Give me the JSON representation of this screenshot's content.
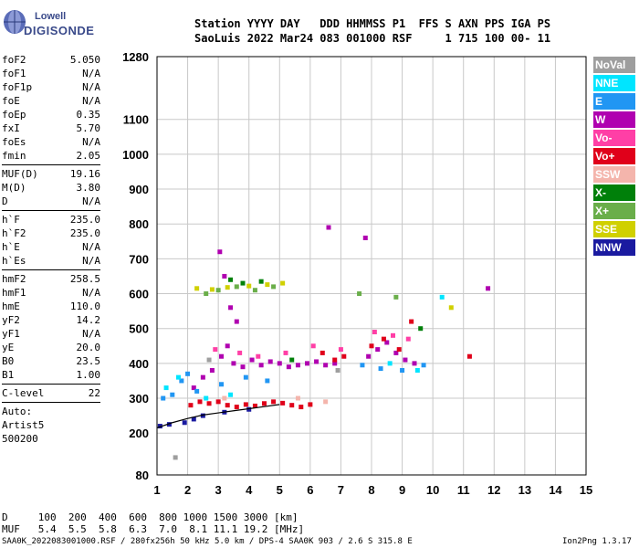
{
  "logo": {
    "line1": "Lowell",
    "line2": "DIGISONDE"
  },
  "header": {
    "line1": "Station YYYY DAY   DDD HHMMSS P1  FFS S AXN PPS IGA PS",
    "line2": "SaoLuis 2022 Mar24 083 001000 RSF     1 715 100 00- 11"
  },
  "params": {
    "group1": [
      {
        "k": "foF2",
        "v": "5.050"
      },
      {
        "k": "foF1",
        "v": "N/A"
      },
      {
        "k": "foF1p",
        "v": "N/A"
      },
      {
        "k": "foE",
        "v": "N/A"
      },
      {
        "k": "foEp",
        "v": "0.35"
      },
      {
        "k": "fxI",
        "v": "5.70"
      },
      {
        "k": "foEs",
        "v": "N/A"
      },
      {
        "k": "fmin",
        "v": "2.05"
      }
    ],
    "group2": [
      {
        "k": "MUF(D)",
        "v": "19.16"
      },
      {
        "k": "M(D)",
        "v": "3.80"
      },
      {
        "k": "D",
        "v": "N/A"
      }
    ],
    "group3": [
      {
        "k": "h`F",
        "v": "235.0"
      },
      {
        "k": "h`F2",
        "v": "235.0"
      },
      {
        "k": "h`E",
        "v": "N/A"
      },
      {
        "k": "h`Es",
        "v": "N/A"
      }
    ],
    "group4": [
      {
        "k": "hmF2",
        "v": "258.5"
      },
      {
        "k": "hmF1",
        "v": "N/A"
      },
      {
        "k": "hmE",
        "v": "110.0"
      },
      {
        "k": "yF2",
        "v": "14.2"
      },
      {
        "k": "yF1",
        "v": "N/A"
      },
      {
        "k": "yE",
        "v": "20.0"
      },
      {
        "k": "B0",
        "v": "23.5"
      },
      {
        "k": "B1",
        "v": "1.00"
      }
    ],
    "group5": [
      {
        "k": "C-level",
        "v": "22"
      }
    ],
    "auto": [
      "Auto:",
      "Artist5",
      "500200"
    ]
  },
  "legend": [
    {
      "label": "NoVal",
      "color": "#9e9e9e"
    },
    {
      "label": "NNE",
      "color": "#00e5ff"
    },
    {
      "label": "E",
      "color": "#2196f3"
    },
    {
      "label": "W",
      "color": "#b000b0"
    },
    {
      "label": "Vo-",
      "color": "#ff3fa6"
    },
    {
      "label": "Vo+",
      "color": "#e0001a"
    },
    {
      "label": "SSW",
      "color": "#f4b5ac"
    },
    {
      "label": "X-",
      "color": "#00800a"
    },
    {
      "label": "X+",
      "color": "#6aae4a"
    },
    {
      "label": "SSE",
      "color": "#d0d000"
    },
    {
      "label": "NNW",
      "color": "#1a1aa0"
    }
  ],
  "chart_data": {
    "type": "scatter",
    "xlabel": "",
    "ylabel": "",
    "xlim": [
      1,
      15
    ],
    "ylim": [
      80,
      1280
    ],
    "xticks": [
      1,
      2,
      3,
      4,
      5,
      6,
      7,
      8,
      9,
      10,
      11,
      12,
      13,
      14,
      15
    ],
    "yticks": [
      80,
      200,
      300,
      400,
      500,
      600,
      700,
      800,
      900,
      1000,
      1100,
      1280
    ],
    "trace": [
      [
        1.0,
        215
      ],
      [
        1.5,
        230
      ],
      [
        2.0,
        242
      ],
      [
        2.5,
        252
      ],
      [
        3.0,
        258
      ],
      [
        3.5,
        264
      ],
      [
        4.0,
        270
      ],
      [
        4.5,
        276
      ],
      [
        5.0,
        282
      ]
    ],
    "series": [
      {
        "color": "#b000b0",
        "points": [
          [
            2.2,
            330
          ],
          [
            2.5,
            360
          ],
          [
            2.8,
            380
          ],
          [
            3.1,
            420
          ],
          [
            3.3,
            450
          ],
          [
            3.5,
            400
          ],
          [
            3.8,
            390
          ],
          [
            4.1,
            410
          ],
          [
            4.4,
            395
          ],
          [
            4.7,
            405
          ],
          [
            5.0,
            400
          ],
          [
            5.3,
            390
          ],
          [
            5.6,
            395
          ],
          [
            5.9,
            400
          ],
          [
            6.2,
            405
          ],
          [
            6.5,
            395
          ],
          [
            6.8,
            400
          ],
          [
            7.9,
            420
          ],
          [
            8.2,
            440
          ],
          [
            8.5,
            460
          ],
          [
            8.8,
            430
          ],
          [
            9.1,
            410
          ],
          [
            9.4,
            400
          ],
          [
            3.05,
            720
          ],
          [
            3.2,
            650
          ],
          [
            3.4,
            560
          ],
          [
            3.6,
            520
          ],
          [
            6.6,
            790
          ],
          [
            7.8,
            760
          ],
          [
            11.8,
            615
          ]
        ]
      },
      {
        "color": "#e0001a",
        "points": [
          [
            2.1,
            280
          ],
          [
            2.4,
            290
          ],
          [
            2.7,
            285
          ],
          [
            3.0,
            290
          ],
          [
            3.3,
            280
          ],
          [
            3.6,
            275
          ],
          [
            3.9,
            282
          ],
          [
            4.2,
            278
          ],
          [
            4.5,
            285
          ],
          [
            4.8,
            290
          ],
          [
            5.1,
            286
          ],
          [
            5.4,
            280
          ],
          [
            5.7,
            275
          ],
          [
            6.0,
            282
          ],
          [
            6.4,
            430
          ],
          [
            6.8,
            410
          ],
          [
            7.1,
            420
          ],
          [
            8.0,
            450
          ],
          [
            8.4,
            470
          ],
          [
            8.9,
            440
          ],
          [
            9.3,
            520
          ],
          [
            11.2,
            420
          ]
        ]
      },
      {
        "color": "#2196f3",
        "points": [
          [
            1.2,
            300
          ],
          [
            1.5,
            310
          ],
          [
            1.8,
            350
          ],
          [
            2.0,
            370
          ],
          [
            2.3,
            320
          ],
          [
            3.1,
            340
          ],
          [
            3.9,
            360
          ],
          [
            4.6,
            350
          ],
          [
            7.7,
            395
          ],
          [
            8.3,
            385
          ],
          [
            9.0,
            380
          ],
          [
            9.7,
            395
          ]
        ]
      },
      {
        "color": "#00e5ff",
        "points": [
          [
            1.3,
            330
          ],
          [
            1.7,
            360
          ],
          [
            2.6,
            300
          ],
          [
            3.4,
            310
          ],
          [
            8.6,
            400
          ],
          [
            9.5,
            380
          ],
          [
            10.3,
            590
          ]
        ]
      },
      {
        "color": "#1a1aa0",
        "points": [
          [
            1.1,
            220
          ],
          [
            1.4,
            225
          ],
          [
            1.9,
            230
          ],
          [
            2.2,
            240
          ],
          [
            2.5,
            250
          ],
          [
            3.2,
            260
          ],
          [
            4.0,
            268
          ]
        ]
      },
      {
        "color": "#ff3fa6",
        "points": [
          [
            2.9,
            440
          ],
          [
            3.7,
            430
          ],
          [
            4.3,
            420
          ],
          [
            5.2,
            430
          ],
          [
            6.1,
            450
          ],
          [
            7.0,
            440
          ],
          [
            8.1,
            490
          ],
          [
            8.7,
            480
          ],
          [
            9.2,
            470
          ]
        ]
      },
      {
        "color": "#6aae4a",
        "points": [
          [
            2.6,
            600
          ],
          [
            3.0,
            610
          ],
          [
            3.6,
            620
          ],
          [
            4.2,
            610
          ],
          [
            4.8,
            620
          ],
          [
            7.6,
            600
          ],
          [
            8.8,
            590
          ]
        ]
      },
      {
        "color": "#00800a",
        "points": [
          [
            3.4,
            640
          ],
          [
            3.8,
            630
          ],
          [
            4.4,
            635
          ],
          [
            5.4,
            410
          ],
          [
            9.6,
            500
          ]
        ]
      },
      {
        "color": "#d0d000",
        "points": [
          [
            2.3,
            615
          ],
          [
            2.8,
            612
          ],
          [
            3.3,
            618
          ],
          [
            4.0,
            622
          ],
          [
            4.6,
            626
          ],
          [
            5.1,
            630
          ],
          [
            10.6,
            560
          ]
        ]
      },
      {
        "color": "#f4b5ac",
        "points": [
          [
            3.2,
            300
          ],
          [
            5.6,
            300
          ],
          [
            6.5,
            290
          ]
        ]
      },
      {
        "color": "#9e9e9e",
        "points": [
          [
            1.6,
            130
          ],
          [
            2.7,
            410
          ],
          [
            6.9,
            380
          ]
        ]
      }
    ]
  },
  "bottom": {
    "dline": "D     100  200  400  600  800 1000 1500 3000 [km]",
    "mufline": "MUF   5.4  5.5  5.8  6.3  7.0  8.1 11.1 19.2 [MHz]",
    "footer_left": "SAA0K_2022083001000.RSF / 280fx256h 50 kHz 5.0 km / DPS-4 SAA0K 903 / 2.6 S 315.8 E",
    "footer_right": "Ion2Png 1.3.17"
  }
}
